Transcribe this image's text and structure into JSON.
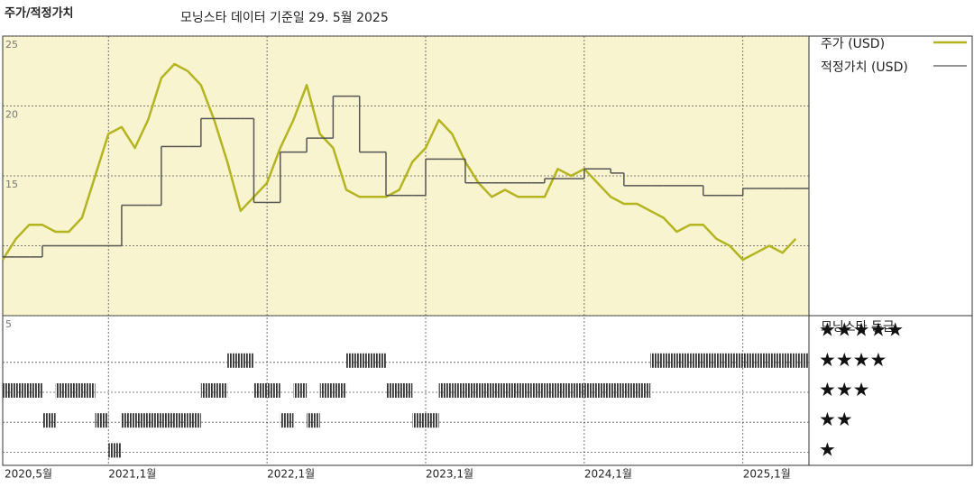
{
  "chart_data": [
    {
      "type": "line",
      "title": "주가/적정가치",
      "subtitle": "모닝스타 데이터 기준일 29. 5월 2025",
      "x": [
        "2020-05",
        "2020-06",
        "2020-07",
        "2020-08",
        "2020-09",
        "2020-10",
        "2020-11",
        "2020-12",
        "2021-01",
        "2021-02",
        "2021-03",
        "2021-04",
        "2021-05",
        "2021-06",
        "2021-07",
        "2021-08",
        "2021-09",
        "2021-10",
        "2021-11",
        "2021-12",
        "2022-01",
        "2022-02",
        "2022-03",
        "2022-04",
        "2022-05",
        "2022-06",
        "2022-07",
        "2022-08",
        "2022-09",
        "2022-10",
        "2022-11",
        "2022-12",
        "2023-01",
        "2023-02",
        "2023-03",
        "2023-04",
        "2023-05",
        "2023-06",
        "2023-07",
        "2023-08",
        "2023-09",
        "2023-10",
        "2023-11",
        "2023-12",
        "2024-01",
        "2024-02",
        "2024-03",
        "2024-04",
        "2024-05",
        "2024-06",
        "2024-07",
        "2024-08",
        "2024-09",
        "2024-10",
        "2024-11",
        "2024-12",
        "2025-01",
        "2025-02",
        "2025-03",
        "2025-04",
        "2025-05"
      ],
      "xlim": [
        "2020-05",
        "2025-06"
      ],
      "xticks": [
        {
          "value": "2020-05",
          "label": "2020,5월"
        },
        {
          "value": "2021-01",
          "label": "2021,1월"
        },
        {
          "value": "2022-01",
          "label": "2022,1월"
        },
        {
          "value": "2023-01",
          "label": "2023,1월"
        },
        {
          "value": "2024-01",
          "label": "2024,1월"
        },
        {
          "value": "2025-01",
          "label": "2025,1월"
        }
      ],
      "ylim": [
        5,
        25
      ],
      "yticks": [
        5,
        {
          "value": 10,
          "label": null
        },
        15,
        20,
        25
      ],
      "grid": true,
      "legend": "right",
      "series": [
        {
          "name": "주가 (USD)",
          "color": "#b3b41f",
          "values": [
            9,
            10.5,
            11.5,
            11.5,
            11,
            11,
            12,
            15,
            18,
            18.5,
            17,
            19,
            22,
            23,
            22.5,
            21.5,
            19,
            16,
            12.5,
            13.5,
            14.5,
            17,
            19,
            21.5,
            18,
            17,
            14,
            13.5,
            13.5,
            13.5,
            14,
            16,
            17,
            19,
            18,
            16,
            14.5,
            13.5,
            14,
            13.5,
            13.5,
            13.5,
            15.5,
            15,
            15.5,
            14.5,
            13.5,
            13,
            13,
            12.5,
            12,
            11,
            11.5,
            11.5,
            10.5,
            10,
            9,
            9.5,
            10,
            9.5,
            10.5
          ]
        },
        {
          "name": "적정가치 (USD)",
          "color": "#555555",
          "step": true,
          "values": [
            9.2,
            9.2,
            9.2,
            10,
            10,
            10,
            10,
            10,
            10,
            12.9,
            12.9,
            12.9,
            17.1,
            17.1,
            17.1,
            19.1,
            19.1,
            19.1,
            19.1,
            13.1,
            13.1,
            16.7,
            16.7,
            17.7,
            17.7,
            20.7,
            20.7,
            16.7,
            16.7,
            13.6,
            13.6,
            13.6,
            16.2,
            16.2,
            16.2,
            14.5,
            14.5,
            14.5,
            14.5,
            14.5,
            14.5,
            14.8,
            14.8,
            14.8,
            15.5,
            15.5,
            15.2,
            14.3,
            14.3,
            14.3,
            14.3,
            14.3,
            14.3,
            13.6,
            13.6,
            13.6,
            14.1,
            14.1,
            14.1,
            14.1,
            14.1
          ]
        }
      ]
    },
    {
      "type": "rating",
      "title": "모닝스타 등급",
      "color": "#333333",
      "yticks": [
        {
          "value": 5,
          "label": "★★★★★"
        },
        {
          "value": 4,
          "label": "★★★★"
        },
        {
          "value": 3,
          "label": "★★★"
        },
        {
          "value": 2,
          "label": "★★"
        },
        {
          "value": 1,
          "label": "★"
        }
      ],
      "ylim": [
        0.5,
        5.5
      ],
      "values": [
        3,
        3,
        3,
        2,
        3,
        3,
        3,
        2,
        1,
        2,
        2,
        2,
        2,
        2,
        2,
        3,
        3,
        4,
        4,
        3,
        3,
        2,
        3,
        2,
        3,
        3,
        4,
        4,
        4,
        3,
        3,
        2,
        2,
        3,
        3,
        3,
        3,
        3,
        3,
        3,
        3,
        3,
        3,
        3,
        3,
        3,
        3,
        3,
        3,
        4,
        4,
        4,
        4,
        4,
        4,
        4,
        4,
        4,
        4,
        4,
        4
      ]
    }
  ]
}
